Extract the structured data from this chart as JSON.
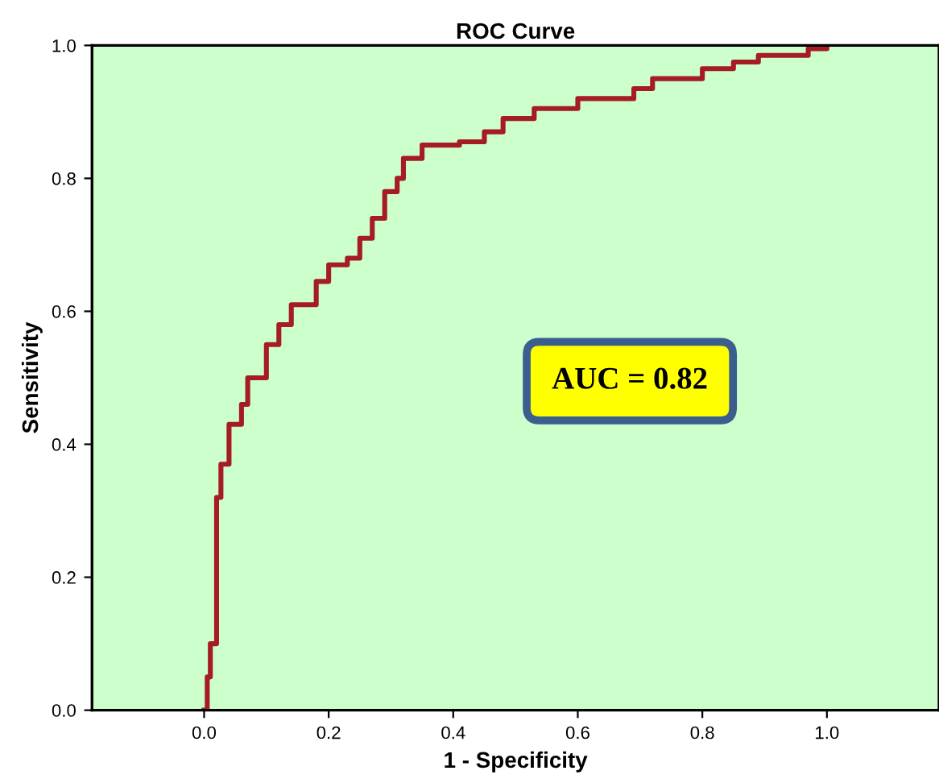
{
  "chart_data": {
    "type": "step",
    "title": "ROC Curve",
    "xlabel": "1 - Specificity",
    "ylabel": "Sensitivity",
    "x": [
      0.0,
      0.005,
      0.01,
      0.02,
      0.027,
      0.04,
      0.06,
      0.07,
      0.1,
      0.12,
      0.14,
      0.18,
      0.2,
      0.23,
      0.25,
      0.27,
      0.29,
      0.31,
      0.32,
      0.35,
      0.41,
      0.45,
      0.48,
      0.53,
      0.6,
      0.69,
      0.72,
      0.8,
      0.85,
      0.89,
      0.97,
      1.0
    ],
    "series": [
      {
        "color": "#a51c24",
        "values": [
          0.0,
          0.05,
          0.1,
          0.32,
          0.37,
          0.43,
          0.46,
          0.5,
          0.55,
          0.58,
          0.61,
          0.645,
          0.67,
          0.68,
          0.71,
          0.74,
          0.78,
          0.8,
          0.83,
          0.85,
          0.855,
          0.87,
          0.89,
          0.905,
          0.92,
          0.935,
          0.95,
          0.965,
          0.975,
          0.985,
          0.995,
          1.0
        ]
      }
    ],
    "xlim": [
      -0.18,
      1.18
    ],
    "ylim": [
      0,
      1
    ],
    "xticks": [
      {
        "value": 0,
        "label": "0.0"
      },
      0.2,
      0.4,
      0.6,
      0.8,
      {
        "value": 1,
        "label": "1.0"
      }
    ],
    "yticks": [
      {
        "value": 0,
        "label": "0.0"
      },
      0.2,
      0.4,
      0.6,
      0.8,
      {
        "value": 1,
        "label": "1.0"
      }
    ],
    "annotations": [
      "AUC = 0.82"
    ],
    "grid": false,
    "legend": false
  }
}
